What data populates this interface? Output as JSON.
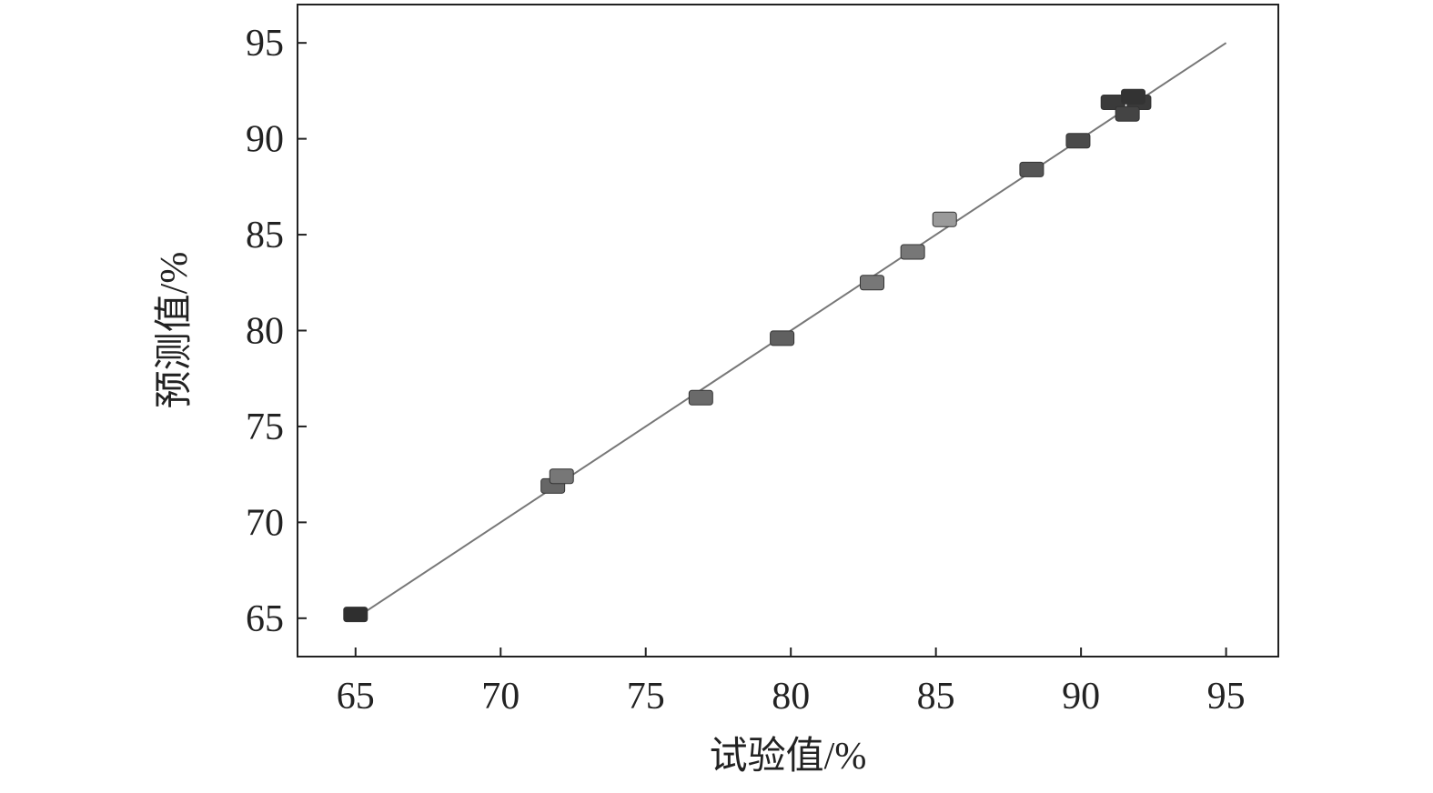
{
  "chart_data": {
    "type": "scatter",
    "title": "",
    "xlabel": "试验值/%",
    "ylabel": "预测值/%",
    "xlim": [
      63,
      96.8
    ],
    "ylim": [
      63,
      97
    ],
    "xticks": [
      65,
      70,
      75,
      80,
      85,
      90,
      95
    ],
    "yticks": [
      65,
      70,
      75,
      80,
      85,
      90,
      95
    ],
    "grid": false,
    "legend": "none",
    "marker": "square",
    "fit_line": {
      "x": [
        65,
        95
      ],
      "y": [
        65,
        95
      ],
      "color": "#777777"
    },
    "points": [
      {
        "x": 65.0,
        "y": 65.2,
        "color": "#2f2f2f"
      },
      {
        "x": 71.8,
        "y": 71.9,
        "color": "#666666"
      },
      {
        "x": 72.1,
        "y": 72.4,
        "color": "#777777"
      },
      {
        "x": 76.9,
        "y": 76.5,
        "color": "#6a6a6a"
      },
      {
        "x": 79.7,
        "y": 79.6,
        "color": "#606060"
      },
      {
        "x": 82.8,
        "y": 82.5,
        "color": "#777777"
      },
      {
        "x": 84.2,
        "y": 84.1,
        "color": "#777777"
      },
      {
        "x": 85.3,
        "y": 85.8,
        "color": "#9a9a9a"
      },
      {
        "x": 88.3,
        "y": 88.4,
        "color": "#555555"
      },
      {
        "x": 89.9,
        "y": 89.9,
        "color": "#4a4a4a"
      },
      {
        "x": 91.1,
        "y": 91.9,
        "color": "#3a3a3a"
      },
      {
        "x": 92.0,
        "y": 91.9,
        "color": "#3a3a3a"
      },
      {
        "x": 91.8,
        "y": 92.2,
        "color": "#333333"
      },
      {
        "x": 91.6,
        "y": 91.3,
        "color": "#444444"
      }
    ]
  }
}
